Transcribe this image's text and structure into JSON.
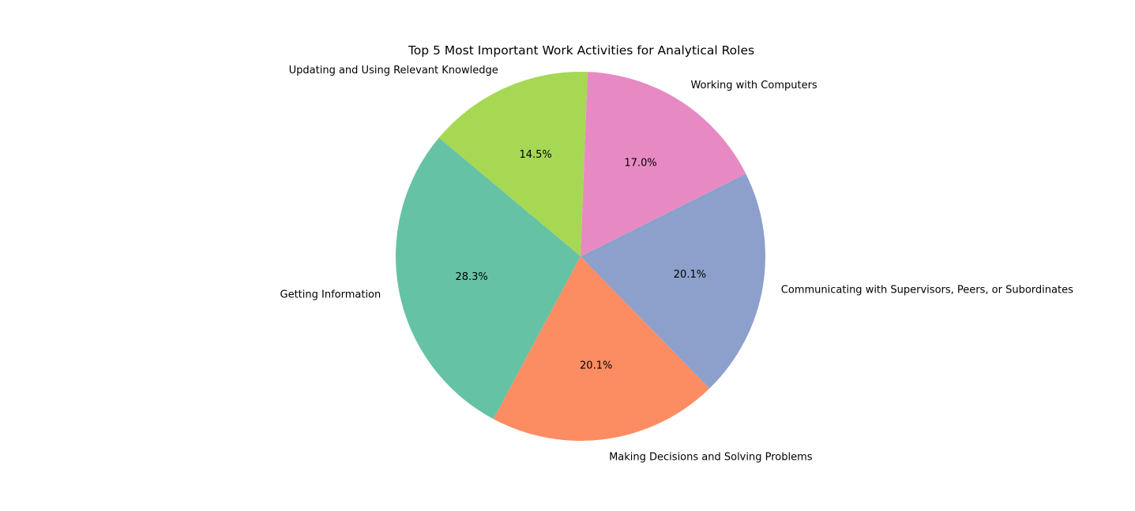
{
  "chart_data": {
    "type": "pie",
    "title": "Top 5 Most Important Work Activities for Analytical Roles",
    "autopct_format": "percent_one_decimal",
    "start_direction": "counterclockwise",
    "slices": [
      {
        "label": "Getting Information",
        "value": 28.3,
        "percent_label": "28.3%",
        "color": "#66c2a5"
      },
      {
        "label": "Making Decisions and Solving Problems",
        "value": 20.1,
        "percent_label": "20.1%",
        "color": "#fc8d62"
      },
      {
        "label": "Communicating with Supervisors, Peers, or Subordinates",
        "value": 20.1,
        "percent_label": "20.1%",
        "color": "#8da0cb"
      },
      {
        "label": "Working with Computers",
        "value": 17.0,
        "percent_label": "17.0%",
        "color": "#e78ac3"
      },
      {
        "label": "Updating and Using Relevant Knowledge",
        "value": 14.5,
        "percent_label": "14.5%",
        "color": "#a6d854"
      }
    ]
  }
}
